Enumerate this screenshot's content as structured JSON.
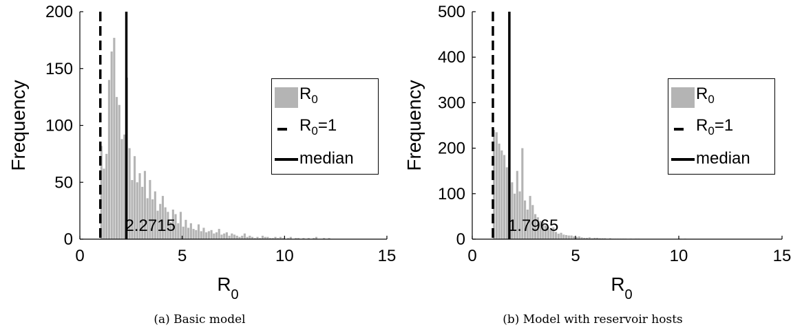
{
  "chart_data": [
    {
      "type": "bar",
      "caption": "(a) Basic model",
      "xlabel": "R",
      "xlabel_sub": "0",
      "ylabel": "Frequency",
      "xlim": [
        0,
        15
      ],
      "ylim": [
        0,
        200
      ],
      "xticks": [
        "0",
        "5",
        "10",
        "15"
      ],
      "yticks": [
        "0",
        "50",
        "100",
        "150",
        "200"
      ],
      "bin_start": 1.0,
      "bin_width": 0.125,
      "values": [
        82,
        62,
        75,
        140,
        165,
        177,
        125,
        118,
        88,
        92,
        142,
        80,
        52,
        73,
        50,
        58,
        46,
        60,
        36,
        52,
        35,
        42,
        25,
        31,
        38,
        28,
        24,
        15,
        26,
        22,
        14,
        24,
        11,
        17,
        10,
        14,
        9,
        8,
        13,
        7,
        10,
        6,
        7,
        8,
        5,
        6,
        9,
        4,
        5,
        6,
        3,
        5,
        4,
        3,
        2,
        3,
        5,
        2,
        3,
        2,
        1,
        2,
        1,
        3,
        2,
        2,
        1,
        1,
        2,
        1,
        2,
        1,
        0,
        1,
        2,
        0,
        1,
        1,
        0,
        1,
        0,
        1,
        0,
        1,
        2,
        0,
        0,
        1,
        0,
        1
      ],
      "r0_equals_one": 1,
      "median": 2.2715,
      "median_label": "2.2715",
      "legend": {
        "position": "right",
        "hist": "R",
        "hist_sub": "0",
        "dashed": "R",
        "dashed_sub": "0",
        "dashed_suffix": "=1",
        "solid": "median"
      }
    },
    {
      "type": "bar",
      "caption": "(b) Model with reservoir hosts",
      "xlabel": "R",
      "xlabel_sub": "0",
      "ylabel": "Frequency",
      "xlim": [
        0,
        15
      ],
      "ylim": [
        0,
        500
      ],
      "xticks": [
        "0",
        "5",
        "10",
        "15"
      ],
      "yticks": [
        "0",
        "100",
        "200",
        "300",
        "400",
        "500"
      ],
      "bin_start": 1.0,
      "bin_width": 0.125,
      "values": [
        240,
        235,
        210,
        195,
        185,
        158,
        120,
        125,
        100,
        150,
        105,
        200,
        85,
        65,
        95,
        75,
        55,
        48,
        40,
        38,
        30,
        28,
        22,
        26,
        16,
        12,
        14,
        10,
        9,
        8,
        8,
        6,
        5,
        6,
        4,
        3,
        3,
        4,
        2,
        3,
        3,
        2,
        2,
        2,
        1,
        2,
        1,
        1,
        1,
        1,
        1,
        1,
        0,
        1,
        0,
        1,
        1,
        0,
        0,
        0,
        0,
        0,
        0,
        0,
        0,
        0,
        0,
        0,
        0,
        0,
        0,
        0,
        1,
        0,
        1
      ],
      "r0_equals_one": 1,
      "median": 1.7965,
      "median_label": "1.7965",
      "legend": {
        "position": "right",
        "hist": "R",
        "hist_sub": "0",
        "dashed": "R",
        "dashed_sub": "0",
        "dashed_suffix": "=1",
        "solid": "median"
      }
    }
  ],
  "colors": {
    "bars": "#b4b4b4",
    "lines": "#000000"
  }
}
